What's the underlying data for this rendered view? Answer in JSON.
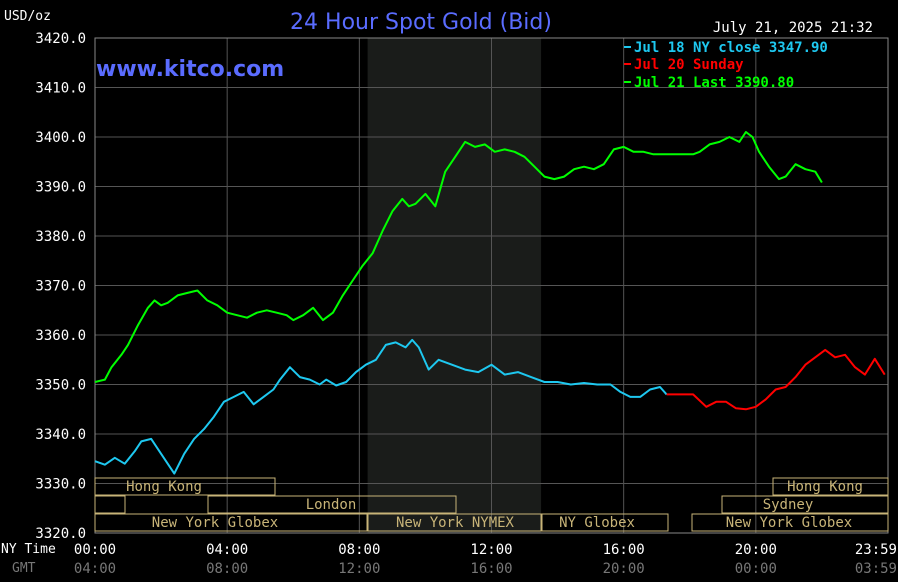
{
  "header": {
    "unit": "USD/oz",
    "title": "24 Hour Spot Gold (Bid)",
    "timestamp": "July 21, 2025 21:32",
    "watermark": "www.kitco.com"
  },
  "colors": {
    "background": "#000000",
    "title": "#5a6cff",
    "watermark": "#5a6cff",
    "grid": "#555555",
    "series_jul18": "#1ec8f0",
    "series_jul20": "#ff0000",
    "series_jul21": "#00ff00",
    "session_box": "#c8b478",
    "nymex_shade": "#1a1c1a"
  },
  "legend": {
    "jul18": "Jul 18 NY close 3347.90",
    "jul20": "Jul 20 Sunday",
    "jul21": "Jul 21 Last 3390.80"
  },
  "axis": {
    "ny_label": "NY Time",
    "gmt_label": "GMT",
    "y_ticks": [
      "3420.0",
      "3410.0",
      "3400.0",
      "3390.0",
      "3380.0",
      "3370.0",
      "3360.0",
      "3350.0",
      "3340.0",
      "3330.0",
      "3320.0"
    ],
    "ny_ticks": [
      "00:00",
      "04:00",
      "08:00",
      "12:00",
      "16:00",
      "20:00",
      "23:59"
    ],
    "gmt_ticks": [
      "04:00",
      "08:00",
      "12:00",
      "16:00",
      "20:00",
      "00:00",
      "03:59"
    ]
  },
  "sessions": {
    "hong_kong_1": "Hong Kong",
    "london": "London",
    "new_york_globex_1": "New York Globex",
    "new_york_nymex": "New York NYMEX",
    "ny_globex": "NY Globex",
    "hong_kong_2": "Hong Kong",
    "sydney": "Sydney",
    "new_york_globex_2": "New York Globex"
  },
  "chart_data": {
    "type": "line",
    "title": "24 Hour Spot Gold (Bid)",
    "ylabel": "USD/oz",
    "xlabel": "NY Time",
    "ylim": [
      3320,
      3420
    ],
    "xlim": [
      0,
      24
    ],
    "x_unit": "hours (NY time)",
    "grid": true,
    "legend_position": "top-right",
    "nymex_shaded_hours": [
      8.25,
      13.5
    ],
    "series": [
      {
        "name": "Jul 18 NY close 3347.90",
        "color": "#1ec8f0",
        "x": [
          0,
          0.3,
          0.6,
          0.9,
          1.2,
          1.4,
          1.7,
          2.0,
          2.2,
          2.4,
          2.7,
          3.0,
          3.3,
          3.6,
          3.9,
          4.2,
          4.5,
          4.8,
          5.1,
          5.4,
          5.6,
          5.9,
          6.2,
          6.5,
          6.8,
          7.0,
          7.3,
          7.6,
          7.9,
          8.2,
          8.5,
          8.8,
          9.1,
          9.4,
          9.6,
          9.8,
          10.1,
          10.4,
          10.8,
          11.2,
          11.6,
          12.0,
          12.4,
          12.8,
          13.2,
          13.6,
          14.0,
          14.4,
          14.8,
          15.2,
          15.6,
          15.9,
          16.2,
          16.5,
          16.8,
          17.1,
          17.3
        ],
        "y": [
          3334.5,
          3333.8,
          3335.2,
          3334,
          3336.5,
          3338.5,
          3339,
          3336,
          3334,
          3332,
          3336,
          3339,
          3341,
          3343.5,
          3346.5,
          3347.5,
          3348.5,
          3346,
          3347.5,
          3349,
          3351,
          3353.5,
          3351.5,
          3351,
          3350,
          3351,
          3349.8,
          3350.5,
          3352.5,
          3354,
          3355,
          3358,
          3358.5,
          3357.5,
          3359,
          3357.5,
          3353,
          3355,
          3354,
          3353,
          3352.5,
          3354,
          3352,
          3352.5,
          3351.5,
          3350.5,
          3350.5,
          3350,
          3350.3,
          3350,
          3350,
          3348.5,
          3347.5,
          3347.5,
          3349,
          3349.5,
          3348
        ]
      },
      {
        "name": "Jul 20 Sunday",
        "color": "#ff0000",
        "x": [
          17.3,
          17.7,
          18.1,
          18.5,
          18.8,
          19.1,
          19.4,
          19.7,
          20.0,
          20.3,
          20.6,
          20.9,
          21.2,
          21.5,
          21.8,
          22.1,
          22.4,
          22.7,
          23.0,
          23.3,
          23.6,
          23.9
        ],
        "y": [
          3348,
          3348,
          3348,
          3345.5,
          3346.5,
          3346.5,
          3345.2,
          3345,
          3345.5,
          3347,
          3349,
          3349.5,
          3351.5,
          3354,
          3355.5,
          3357,
          3355.5,
          3356,
          3353.5,
          3352,
          3355.2,
          3352
        ]
      },
      {
        "name": "Jul 21 Last 3390.80",
        "color": "#00ff00",
        "x": [
          0,
          0.3,
          0.5,
          0.8,
          1.0,
          1.3,
          1.6,
          1.8,
          2.0,
          2.2,
          2.5,
          2.8,
          3.1,
          3.4,
          3.7,
          4.0,
          4.3,
          4.6,
          4.9,
          5.2,
          5.5,
          5.8,
          6.0,
          6.3,
          6.6,
          6.9,
          7.2,
          7.5,
          7.8,
          8.1,
          8.4,
          8.7,
          9.0,
          9.3,
          9.5,
          9.7,
          10.0,
          10.3,
          10.6,
          10.9,
          11.2,
          11.5,
          11.8,
          12.1,
          12.4,
          12.7,
          13.0,
          13.3,
          13.6,
          13.9,
          14.2,
          14.5,
          14.8,
          15.1,
          15.4,
          15.7,
          16.0,
          16.3,
          16.6,
          16.9,
          17.2,
          17.5,
          17.8,
          18.1,
          18.3,
          18.6,
          18.9,
          19.2,
          19.5,
          19.7,
          19.9,
          20.1,
          20.4,
          20.7,
          20.9,
          21.2,
          21.5,
          21.8,
          22.0
        ],
        "y": [
          3350.5,
          3351,
          3353.5,
          3356,
          3358,
          3362,
          3365.5,
          3367,
          3366,
          3366.5,
          3368,
          3368.5,
          3369,
          3367,
          3366,
          3364.5,
          3364,
          3363.5,
          3364.5,
          3365,
          3364.5,
          3364,
          3363,
          3364,
          3365.5,
          3363,
          3364.5,
          3368,
          3371,
          3374,
          3376.5,
          3381,
          3385,
          3387.5,
          3386,
          3386.5,
          3388.5,
          3386,
          3393,
          3396,
          3399,
          3398,
          3398.5,
          3397,
          3397.5,
          3397,
          3396,
          3394,
          3392,
          3391.5,
          3392,
          3393.5,
          3394,
          3393.5,
          3394.5,
          3397.5,
          3398,
          3397,
          3397,
          3396.5,
          3396.5,
          3396.5,
          3396.5,
          3396.5,
          3397,
          3398.5,
          3399,
          3400,
          3399,
          3401,
          3400,
          3397,
          3394,
          3391.5,
          3392,
          3394.5,
          3393.5,
          3393,
          3390.8
        ]
      }
    ]
  }
}
